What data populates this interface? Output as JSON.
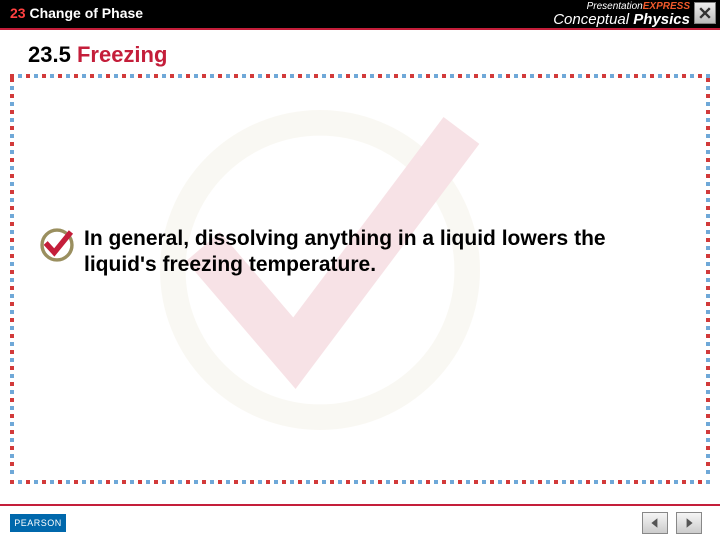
{
  "chapter": {
    "number": "23",
    "title": "Change of Phase"
  },
  "brand": {
    "top_prefix": "Presentation",
    "top_suffix": "EXPRESS",
    "bottom_left": "Conceptual",
    "bottom_right": "Physics"
  },
  "heading": {
    "number": "23.5",
    "title": "Freezing"
  },
  "body": "In general, dissolving anything in a liquid lowers the liquid's freezing temperature.",
  "footer": {
    "publisher": "PEARSON"
  },
  "colors": {
    "accent_red": "#c41e3a",
    "chapter_num": "#ff4040",
    "blue_dot": "#6fa8d8",
    "red_dot": "#d23a3a",
    "watermark_circle": "#d6cba0",
    "watermark_check": "#c41e3a",
    "pearson_bg": "#0068ac"
  },
  "icons": {
    "close": "close-icon",
    "bullet": "check-circle-icon",
    "prev": "arrow-left-icon",
    "next": "arrow-right-icon"
  }
}
